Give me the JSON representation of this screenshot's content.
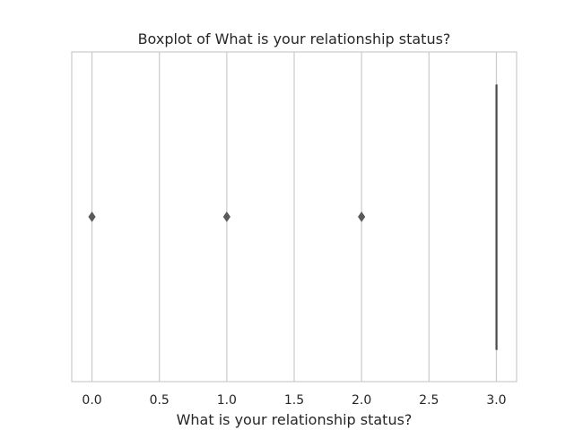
{
  "chart_data": {
    "type": "boxplot",
    "orientation": "horizontal",
    "title": "Boxplot of What is your relationship status?",
    "xlabel": "What is your relationship status?",
    "ylabel": "",
    "xlim": [
      -0.15,
      3.15
    ],
    "xticks": [
      0.0,
      0.5,
      1.0,
      1.5,
      2.0,
      2.5,
      3.0
    ],
    "xtick_labels": [
      "0.0",
      "0.5",
      "1.0",
      "1.5",
      "2.0",
      "2.5",
      "3.0"
    ],
    "grid": true,
    "box": {
      "q1": 3.0,
      "median": 3.0,
      "q3": 3.0,
      "whisker_low": 3.0,
      "whisker_high": 3.0
    },
    "outliers": [
      0.0,
      1.0,
      2.0
    ],
    "colors": {
      "box_line": "#4d4d4d",
      "grid": "#cccccc",
      "frame": "#cccccc",
      "outlier": "#5a5a5a"
    }
  }
}
